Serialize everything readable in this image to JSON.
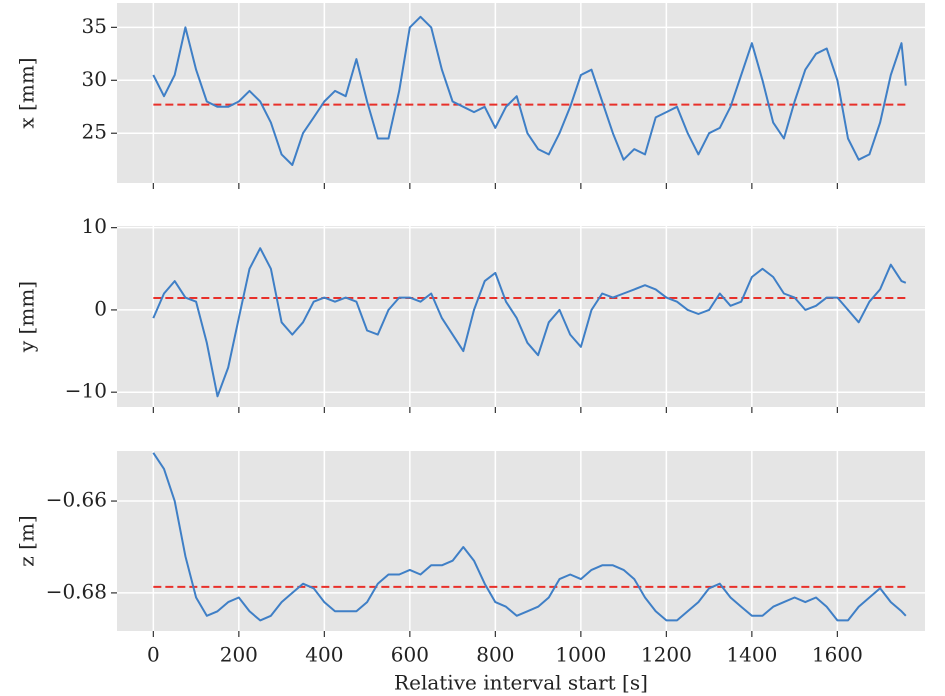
{
  "chart_data": [
    {
      "type": "line",
      "ylabel": "x [mm]",
      "color": "#3f7fc6",
      "x": [
        0,
        25,
        50,
        75,
        100,
        125,
        150,
        175,
        200,
        225,
        250,
        275,
        300,
        325,
        350,
        375,
        400,
        425,
        450,
        475,
        500,
        525,
        550,
        575,
        600,
        625,
        650,
        675,
        700,
        725,
        750,
        775,
        800,
        825,
        850,
        875,
        900,
        925,
        950,
        975,
        1000,
        1025,
        1050,
        1075,
        1100,
        1125,
        1150,
        1175,
        1200,
        1225,
        1250,
        1275,
        1300,
        1325,
        1350,
        1375,
        1400,
        1425,
        1450,
        1475,
        1500,
        1525,
        1550,
        1575,
        1600,
        1625,
        1650,
        1675,
        1700,
        1725,
        1750,
        1760
      ],
      "values": [
        30.5,
        28.5,
        30.5,
        35,
        31,
        28,
        27.5,
        27.5,
        28,
        29,
        28,
        26,
        23,
        22,
        25,
        26.5,
        28,
        29,
        28.5,
        32,
        28,
        24.5,
        24.5,
        29,
        35,
        36,
        35,
        31,
        28,
        27.5,
        27,
        27.5,
        25.5,
        27.5,
        28.5,
        25,
        23.5,
        23,
        25,
        27.5,
        30.5,
        31,
        28,
        25,
        22.5,
        23.5,
        23,
        26.5,
        27,
        27.5,
        25,
        23,
        25,
        25.5,
        27.5,
        30.5,
        33.5,
        30,
        26,
        24.5,
        28,
        31,
        32.5,
        33,
        30,
        24.5,
        22.5,
        23,
        26,
        30.5,
        33.5,
        29.5
      ],
      "reference_line": 27.7,
      "reference_color": "#e8302a",
      "xlim": [
        -85,
        1805
      ],
      "xticks": [
        0,
        200,
        400,
        600,
        800,
        1000,
        1200,
        1400,
        1600
      ],
      "xticklabels": false,
      "ylim": [
        20.3,
        37.3
      ],
      "yticks": [
        25,
        30,
        35
      ],
      "grid": true
    },
    {
      "type": "line",
      "ylabel": "y [mm]",
      "color": "#3f7fc6",
      "x": [
        0,
        25,
        50,
        75,
        100,
        125,
        150,
        175,
        200,
        225,
        250,
        275,
        300,
        325,
        350,
        375,
        400,
        425,
        450,
        475,
        500,
        525,
        550,
        575,
        600,
        625,
        650,
        675,
        700,
        725,
        750,
        775,
        800,
        825,
        850,
        875,
        900,
        925,
        950,
        975,
        1000,
        1025,
        1050,
        1075,
        1100,
        1125,
        1150,
        1175,
        1200,
        1225,
        1250,
        1275,
        1300,
        1325,
        1350,
        1375,
        1400,
        1425,
        1450,
        1475,
        1500,
        1525,
        1550,
        1575,
        1600,
        1625,
        1650,
        1675,
        1700,
        1725,
        1750,
        1760
      ],
      "values": [
        -1,
        2,
        3.5,
        1.5,
        1,
        -4,
        -10.5,
        -7,
        -1,
        5,
        7.5,
        5,
        -1.5,
        -3,
        -1.5,
        1,
        1.5,
        1,
        1.5,
        1,
        -2.5,
        -3,
        0,
        1.5,
        1.5,
        1,
        2,
        -1,
        -3,
        -5,
        0,
        3.5,
        4.5,
        1,
        -1,
        -4,
        -5.5,
        -1.5,
        0,
        -3,
        -4.5,
        0,
        2,
        1.5,
        2,
        2.5,
        3,
        2.5,
        1.5,
        1,
        0,
        -0.5,
        0,
        2,
        0.5,
        1,
        4,
        5,
        4,
        2,
        1.5,
        0,
        0.5,
        1.5,
        1.5,
        0,
        -1.5,
        1,
        2.5,
        5.5,
        3.5,
        3.3
      ],
      "reference_line": 1.45,
      "reference_color": "#e8302a",
      "xlim": [
        -85,
        1805
      ],
      "xticks": [
        0,
        200,
        400,
        600,
        800,
        1000,
        1200,
        1400,
        1600
      ],
      "xticklabels": false,
      "ylim": [
        -11.8,
        10.2
      ],
      "yticks": [
        {
          "value": -10,
          "label": "−10"
        },
        0,
        10
      ],
      "grid": true
    },
    {
      "type": "line",
      "ylabel": "z [m]",
      "xlabel": "Relative interval start [s]",
      "color": "#3f7fc6",
      "x": [
        0,
        25,
        50,
        75,
        100,
        125,
        150,
        175,
        200,
        225,
        250,
        275,
        300,
        325,
        350,
        375,
        400,
        425,
        450,
        475,
        500,
        525,
        550,
        575,
        600,
        625,
        650,
        675,
        700,
        725,
        750,
        775,
        800,
        825,
        850,
        875,
        900,
        925,
        950,
        975,
        1000,
        1025,
        1050,
        1075,
        1100,
        1125,
        1150,
        1175,
        1200,
        1225,
        1250,
        1275,
        1300,
        1325,
        1350,
        1375,
        1400,
        1425,
        1450,
        1475,
        1500,
        1525,
        1550,
        1575,
        1600,
        1625,
        1650,
        1675,
        1700,
        1725,
        1750,
        1760
      ],
      "values": [
        -0.6495,
        -0.653,
        -0.66,
        -0.672,
        -0.681,
        -0.685,
        -0.684,
        -0.682,
        -0.681,
        -0.684,
        -0.686,
        -0.685,
        -0.682,
        -0.68,
        -0.678,
        -0.679,
        -0.682,
        -0.684,
        -0.684,
        -0.684,
        -0.682,
        -0.678,
        -0.676,
        -0.676,
        -0.675,
        -0.676,
        -0.674,
        -0.674,
        -0.673,
        -0.67,
        -0.673,
        -0.678,
        -0.682,
        -0.683,
        -0.685,
        -0.684,
        -0.683,
        -0.681,
        -0.677,
        -0.676,
        -0.677,
        -0.675,
        -0.674,
        -0.674,
        -0.675,
        -0.677,
        -0.681,
        -0.684,
        -0.686,
        -0.686,
        -0.684,
        -0.682,
        -0.679,
        -0.678,
        -0.681,
        -0.683,
        -0.685,
        -0.685,
        -0.683,
        -0.682,
        -0.681,
        -0.682,
        -0.681,
        -0.683,
        -0.686,
        -0.686,
        -0.683,
        -0.681,
        -0.679,
        -0.682,
        -0.684,
        -0.685
      ],
      "reference_line": -0.6787,
      "reference_color": "#e8302a",
      "xlim": [
        -85,
        1805
      ],
      "xticks": [
        0,
        200,
        400,
        600,
        800,
        1000,
        1200,
        1400,
        1600
      ],
      "xticklabels": true,
      "ylim": [
        -0.6883,
        -0.6491
      ],
      "yticks": [
        {
          "value": -0.66,
          "label": "−0.66"
        },
        {
          "value": -0.68,
          "label": "−0.68"
        }
      ],
      "grid": true
    }
  ]
}
